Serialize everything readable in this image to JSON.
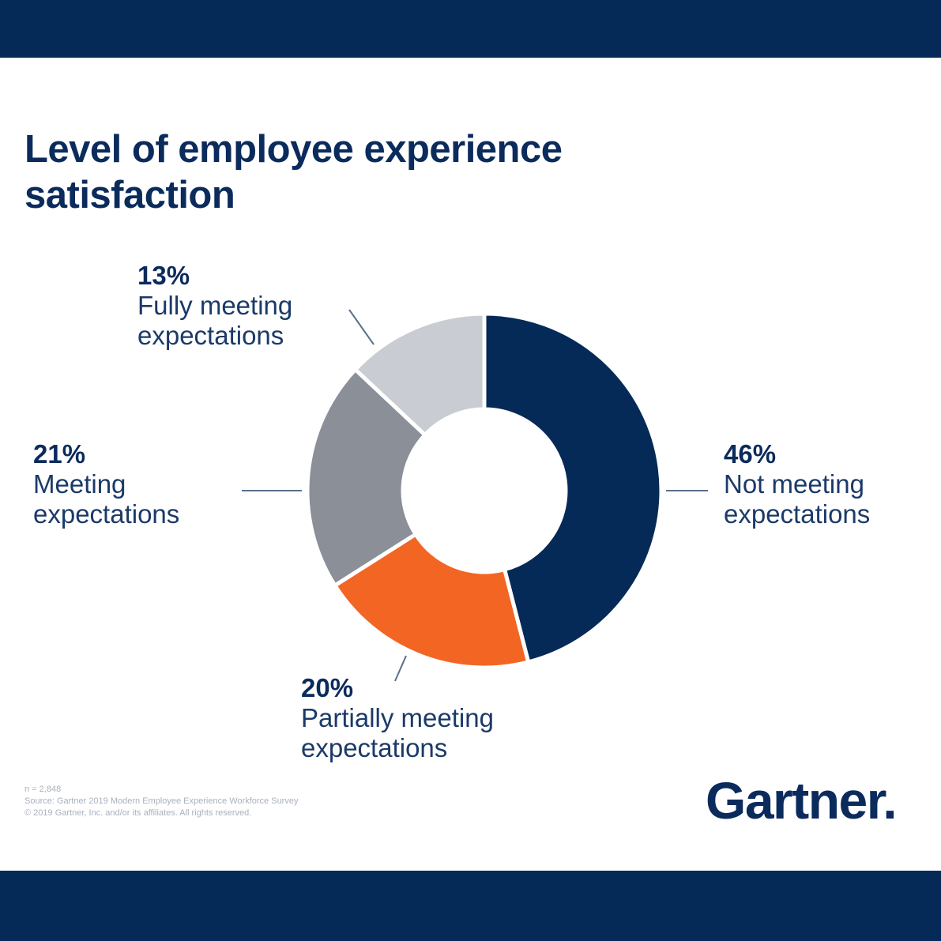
{
  "chart_data": {
    "type": "pie",
    "title": "Level of employee experience satisfaction",
    "slices": [
      {
        "label": "Not meeting expectations",
        "value": 46,
        "value_label": "46%",
        "color": "#062a57"
      },
      {
        "label": "Partially meeting expectations",
        "value": 20,
        "value_label": "20%",
        "color": "#f26522"
      },
      {
        "label": "Meeting expectations",
        "value": 21,
        "value_label": "21%",
        "color": "#8a8f98"
      },
      {
        "label": "Fully meeting expectations",
        "value": 13,
        "value_label": "13%",
        "color": "#c9ccd2"
      }
    ]
  },
  "callouts": {
    "not_meeting": {
      "pct": "46%",
      "label": "Not meeting\nexpectations"
    },
    "partially": {
      "pct": "20%",
      "label": "Partially meeting\nexpectations"
    },
    "meeting": {
      "pct": "21%",
      "label": "Meeting\nexpectations"
    },
    "fully": {
      "pct": "13%",
      "label": "Fully meeting\nexpectations"
    }
  },
  "footnote": {
    "n": "n = 2,848",
    "source": "Source: Gartner 2019 Modern Employee Experience Workforce Survey",
    "copyright": "© 2019 Gartner, Inc. and/or its affiliates. All rights reserved."
  },
  "logo": "Gartner."
}
